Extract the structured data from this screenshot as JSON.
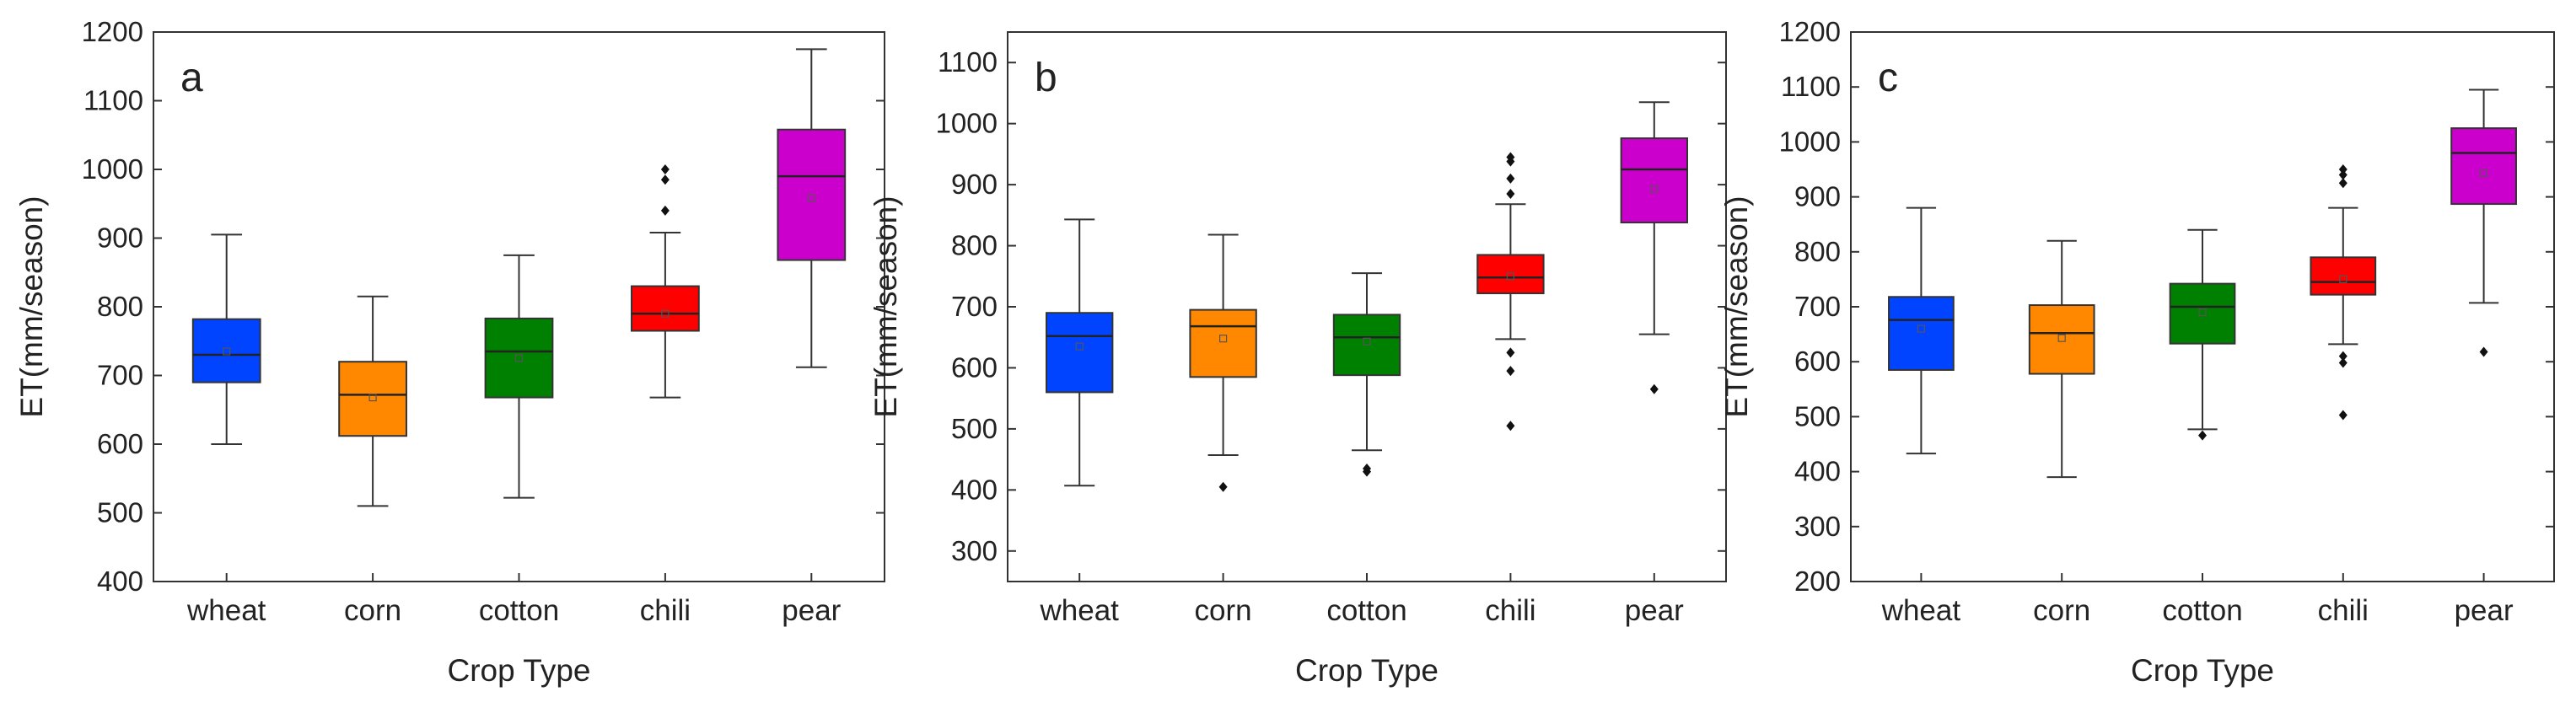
{
  "figure": {
    "panel_count": 3
  },
  "chart_data": [
    {
      "type": "boxplot",
      "panel_label": "a",
      "xlabel": "Crop Type",
      "ylabel": "ET(mm/season)",
      "ylim": [
        400,
        1200
      ],
      "yticks": [
        400,
        500,
        600,
        700,
        800,
        900,
        1000,
        1100,
        1200
      ],
      "categories": [
        "wheat",
        "corn",
        "cotton",
        "chili",
        "pear"
      ],
      "colors": [
        "#0044ff",
        "#ff8800",
        "#008000",
        "#ff0000",
        "#cc00cc"
      ],
      "boxes": [
        {
          "whisker_low": 600,
          "q1": 690,
          "median": 730,
          "mean": 735,
          "q3": 782,
          "whisker_high": 905,
          "outliers": []
        },
        {
          "whisker_low": 510,
          "q1": 612,
          "median": 672,
          "mean": 668,
          "q3": 720,
          "whisker_high": 815,
          "outliers": []
        },
        {
          "whisker_low": 522,
          "q1": 668,
          "median": 735,
          "mean": 725,
          "q3": 783,
          "whisker_high": 875,
          "outliers": []
        },
        {
          "whisker_low": 668,
          "q1": 765,
          "median": 790,
          "mean": 790,
          "q3": 830,
          "whisker_high": 908,
          "outliers": [
            940,
            985,
            1000
          ]
        },
        {
          "whisker_low": 712,
          "q1": 868,
          "median": 990,
          "mean": 958,
          "q3": 1058,
          "whisker_high": 1175,
          "outliers": []
        }
      ]
    },
    {
      "type": "boxplot",
      "panel_label": "b",
      "xlabel": "Crop Type",
      "ylabel": "ET(mm/season)",
      "ylim": [
        250,
        1150
      ],
      "yticks": [
        300,
        400,
        500,
        600,
        700,
        800,
        900,
        1000,
        1100
      ],
      "categories": [
        "wheat",
        "corn",
        "cotton",
        "chili",
        "pear"
      ],
      "colors": [
        "#0044ff",
        "#ff8800",
        "#008000",
        "#ff0000",
        "#cc00cc"
      ],
      "boxes": [
        {
          "whisker_low": 407,
          "q1": 560,
          "median": 652,
          "mean": 635,
          "q3": 690,
          "whisker_high": 843,
          "outliers": []
        },
        {
          "whisker_low": 457,
          "q1": 585,
          "median": 668,
          "mean": 648,
          "q3": 695,
          "whisker_high": 818,
          "outliers": [
            405
          ]
        },
        {
          "whisker_low": 465,
          "q1": 588,
          "median": 650,
          "mean": 643,
          "q3": 687,
          "whisker_high": 755,
          "outliers": [
            430,
            435
          ]
        },
        {
          "whisker_low": 647,
          "q1": 722,
          "median": 748,
          "mean": 750,
          "q3": 785,
          "whisker_high": 868,
          "outliers": [
            505,
            595,
            625,
            885,
            910,
            938,
            945
          ]
        },
        {
          "whisker_low": 655,
          "q1": 838,
          "median": 925,
          "mean": 893,
          "q3": 976,
          "whisker_high": 1035,
          "outliers": [
            565
          ]
        }
      ]
    },
    {
      "type": "boxplot",
      "panel_label": "c",
      "xlabel": "Crop Type",
      "ylabel": "ET(mm/season)",
      "ylim": [
        200,
        1200
      ],
      "yticks": [
        200,
        300,
        400,
        500,
        600,
        700,
        800,
        900,
        1000,
        1100,
        1200
      ],
      "categories": [
        "wheat",
        "corn",
        "cotton",
        "chili",
        "pear"
      ],
      "colors": [
        "#0044ff",
        "#ff8800",
        "#008000",
        "#ff0000",
        "#cc00cc"
      ],
      "boxes": [
        {
          "whisker_low": 433,
          "q1": 585,
          "median": 676,
          "mean": 660,
          "q3": 718,
          "whisker_high": 880,
          "outliers": []
        },
        {
          "whisker_low": 390,
          "q1": 578,
          "median": 652,
          "mean": 643,
          "q3": 703,
          "whisker_high": 820,
          "outliers": []
        },
        {
          "whisker_low": 477,
          "q1": 633,
          "median": 700,
          "mean": 690,
          "q3": 742,
          "whisker_high": 840,
          "outliers": [
            466
          ]
        },
        {
          "whisker_low": 632,
          "q1": 722,
          "median": 745,
          "mean": 750,
          "q3": 790,
          "whisker_high": 880,
          "outliers": [
            503,
            598,
            610,
            925,
            940,
            950
          ]
        },
        {
          "whisker_low": 707,
          "q1": 887,
          "median": 980,
          "mean": 943,
          "q3": 1025,
          "whisker_high": 1095,
          "outliers": [
            618
          ]
        }
      ]
    }
  ]
}
